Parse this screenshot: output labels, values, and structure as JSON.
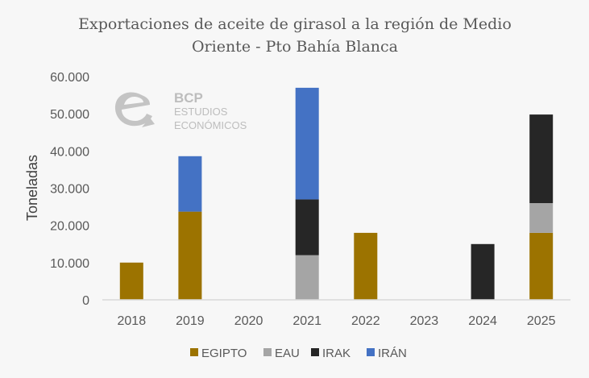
{
  "chart_data": {
    "type": "bar",
    "stacked": true,
    "title": "Exportaciones de aceite de girasol a la región de Medio Oriente - Pto Bahía Blanca",
    "title_lines": [
      "Exportaciones de aceite de girasol a la región de Medio",
      "Oriente - Pto Bahía Blanca"
    ],
    "xlabel": "",
    "ylabel": "Toneladas",
    "ylim": [
      0,
      60000
    ],
    "yticks": [
      0,
      10000,
      20000,
      30000,
      40000,
      50000,
      60000
    ],
    "ytick_labels": [
      "0",
      "10.000",
      "20.000",
      "30.000",
      "40.000",
      "50.000",
      "60.000"
    ],
    "grid": false,
    "legend_position": "bottom",
    "categories": [
      "2018",
      "2019",
      "2020",
      "2021",
      "2022",
      "2023",
      "2024",
      "2025"
    ],
    "series": [
      {
        "name": "EGIPTO",
        "color": "#9c7300",
        "values": [
          10000,
          23700,
          0,
          0,
          18000,
          0,
          0,
          18000
        ]
      },
      {
        "name": "EAU",
        "color": "#a5a5a5",
        "values": [
          0,
          0,
          0,
          12000,
          0,
          0,
          0,
          8000
        ]
      },
      {
        "name": "IRAK",
        "color": "#262626",
        "values": [
          0,
          0,
          0,
          15000,
          0,
          0,
          15000,
          23800
        ]
      },
      {
        "name": "IRÁN",
        "color": "#4472c4",
        "values": [
          0,
          14900,
          0,
          30000,
          0,
          0,
          0,
          0
        ]
      }
    ]
  },
  "watermark": {
    "brand": "BCP",
    "line1": "ESTUDIOS",
    "line2": "ECONÓMICOS",
    "icon": "e-arrow-logo-icon"
  },
  "colors": {
    "background": "#f7f7f7",
    "axis": "#d9d9d9",
    "text": "#595959"
  }
}
